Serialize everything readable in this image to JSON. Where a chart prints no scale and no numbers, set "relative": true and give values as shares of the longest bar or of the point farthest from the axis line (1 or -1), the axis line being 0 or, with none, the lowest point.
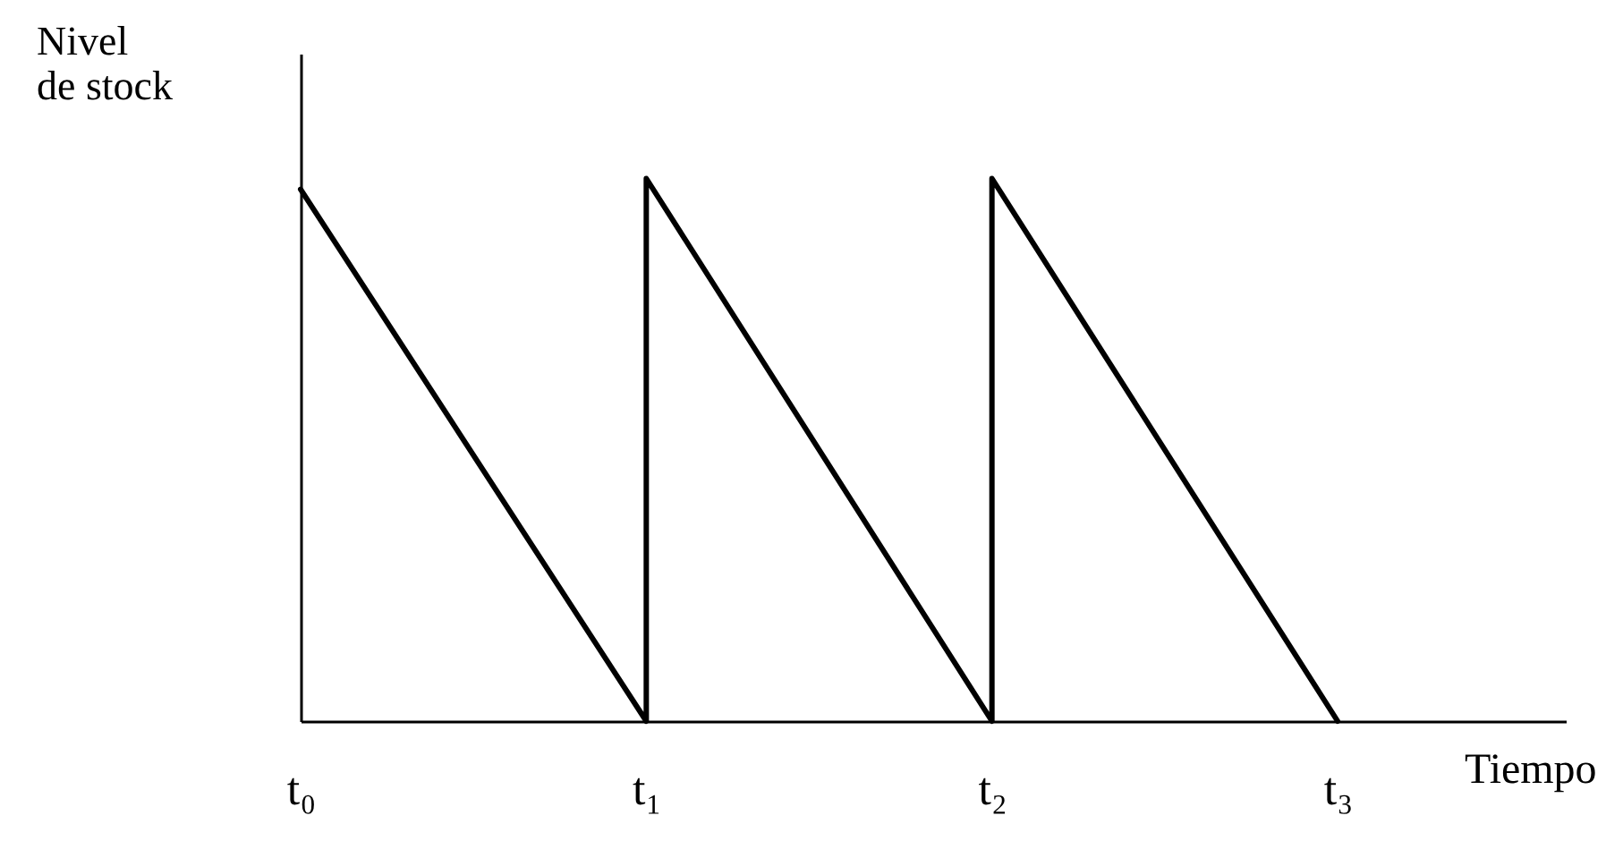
{
  "chart_data": {
    "type": "line",
    "relative": true,
    "xlabel": "Tiempo",
    "ylabel": "Nivel\nde stock",
    "categories": [
      "t₀",
      "t₁",
      "t₂",
      "t₃"
    ],
    "series": [
      {
        "color": "#000000",
        "x": [
          "t₀",
          "t₁",
          "t₁",
          "t₂",
          "t₂",
          "t₃"
        ],
        "values": [
          0.98,
          0,
          1,
          0,
          1,
          0
        ]
      }
    ],
    "grid": false,
    "line_style": "solid"
  }
}
